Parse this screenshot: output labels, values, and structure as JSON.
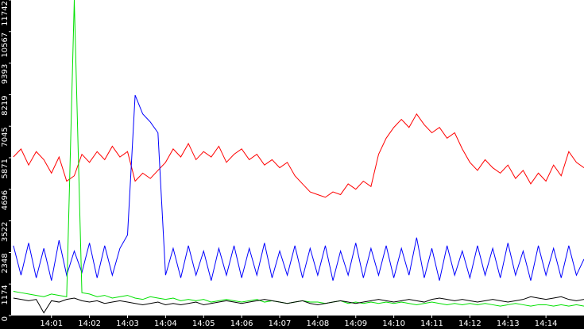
{
  "chart_data": {
    "type": "line",
    "x": [
      840,
      840.2,
      840.4,
      840.6,
      840.8,
      841,
      841.2,
      841.4,
      841.6,
      841.8,
      842,
      842.2,
      842.4,
      842.6,
      842.8,
      843,
      843.2,
      843.4,
      843.6,
      843.8,
      844,
      844.2,
      844.4,
      844.6,
      844.8,
      845,
      845.2,
      845.4,
      845.6,
      845.8,
      846,
      846.2,
      846.4,
      846.6,
      846.8,
      847,
      847.2,
      847.4,
      847.6,
      847.8,
      848,
      848.2,
      848.4,
      848.6,
      848.8,
      849,
      849.2,
      849.4,
      849.6,
      849.8,
      850,
      850.2,
      850.4,
      850.6,
      850.8,
      851,
      851.2,
      851.4,
      851.6,
      851.8,
      852,
      852.2,
      852.4,
      852.6,
      852.8,
      853,
      853.2,
      853.4,
      853.6,
      853.8,
      854,
      854.2,
      854.4,
      854.6,
      854.8,
      855
    ],
    "series": [
      {
        "color": "#ff0000",
        "values": [
          5900,
          6200,
          5600,
          6100,
          5800,
          5300,
          5900,
          5000,
          5200,
          6000,
          5700,
          6100,
          5800,
          6300,
          5900,
          6100,
          5000,
          5300,
          5100,
          5400,
          5700,
          6200,
          5900,
          6400,
          5800,
          6100,
          5900,
          6300,
          5700,
          6000,
          6200,
          5800,
          6000,
          5600,
          5800,
          5500,
          5700,
          5200,
          4900,
          4600,
          4500,
          4400,
          4600,
          4500,
          4900,
          4700,
          5000,
          4800,
          6000,
          6600,
          7000,
          7300,
          7000,
          7500,
          7100,
          6800,
          7000,
          6600,
          6800,
          6200,
          5700,
          5400,
          5800,
          5500,
          5300,
          5600,
          5100,
          5400,
          4900,
          5300,
          5000,
          5600,
          5200,
          6100,
          5700,
          5500
        ]
      },
      {
        "color": "#0000ff",
        "values": [
          2600,
          1500,
          2700,
          1400,
          2500,
          1300,
          2800,
          1500,
          2400,
          1600,
          2700,
          1400,
          2600,
          1500,
          2500,
          3000,
          8200,
          7500,
          7200,
          6800,
          1500,
          2500,
          1400,
          2600,
          1500,
          2400,
          1300,
          2500,
          1500,
          2600,
          1400,
          2500,
          1500,
          2700,
          1400,
          2400,
          1500,
          2600,
          1400,
          2500,
          1500,
          2600,
          1300,
          2400,
          1500,
          2700,
          1400,
          2500,
          1500,
          2600,
          1400,
          2500,
          1500,
          2900,
          1400,
          2500,
          1300,
          2600,
          1500,
          2400,
          1400,
          2600,
          1500,
          2500,
          1400,
          2700,
          1500,
          2400,
          1300,
          2600,
          1500,
          2500,
          1400,
          2600,
          1500,
          2100
        ]
      },
      {
        "color": "#00e000",
        "values": [
          900,
          850,
          800,
          750,
          700,
          800,
          750,
          700,
          11742,
          850,
          800,
          700,
          750,
          650,
          700,
          750,
          650,
          600,
          700,
          650,
          600,
          650,
          550,
          600,
          550,
          600,
          500,
          550,
          600,
          550,
          500,
          550,
          600,
          500,
          550,
          500,
          450,
          500,
          550,
          500,
          500,
          450,
          500,
          550,
          450,
          500,
          450,
          500,
          450,
          500,
          450,
          500,
          450,
          400,
          450,
          500,
          450,
          400,
          450,
          400,
          450,
          400,
          450,
          400,
          350,
          400,
          450,
          400,
          350,
          400,
          400,
          350,
          400,
          350,
          400,
          350
        ]
      },
      {
        "color": "#000000",
        "values": [
          650,
          600,
          550,
          600,
          100,
          550,
          500,
          600,
          650,
          550,
          500,
          550,
          450,
          500,
          550,
          500,
          450,
          400,
          450,
          500,
          400,
          450,
          400,
          450,
          500,
          400,
          450,
          500,
          550,
          500,
          450,
          500,
          550,
          600,
          550,
          500,
          450,
          500,
          550,
          450,
          400,
          450,
          500,
          550,
          500,
          450,
          500,
          550,
          600,
          550,
          500,
          550,
          600,
          550,
          500,
          600,
          650,
          600,
          550,
          600,
          550,
          500,
          550,
          600,
          550,
          500,
          550,
          600,
          700,
          650,
          600,
          650,
          700,
          600,
          550,
          600
        ]
      }
    ],
    "xlim": [
      839.94,
      855
    ],
    "xticks": [
      {
        "value": 841,
        "label": "14:01"
      },
      {
        "value": 842,
        "label": "14:02"
      },
      {
        "value": 843,
        "label": "14:03"
      },
      {
        "value": 844,
        "label": "14:04"
      },
      {
        "value": 845,
        "label": "14:05"
      },
      {
        "value": 846,
        "label": "14:06"
      },
      {
        "value": 847,
        "label": "14:07"
      },
      {
        "value": 848,
        "label": "14:08"
      },
      {
        "value": 849,
        "label": "14:09"
      },
      {
        "value": 850,
        "label": "14:10"
      },
      {
        "value": 851,
        "label": "14:11"
      },
      {
        "value": 852,
        "label": "14:12"
      },
      {
        "value": 853,
        "label": "14:13"
      },
      {
        "value": 854,
        "label": "14:14"
      }
    ],
    "ylim": [
      0,
      11742
    ],
    "yticks": [
      0,
      1174,
      2348,
      3522,
      4696,
      5871,
      7045,
      8219,
      9393,
      10567,
      11742
    ]
  }
}
